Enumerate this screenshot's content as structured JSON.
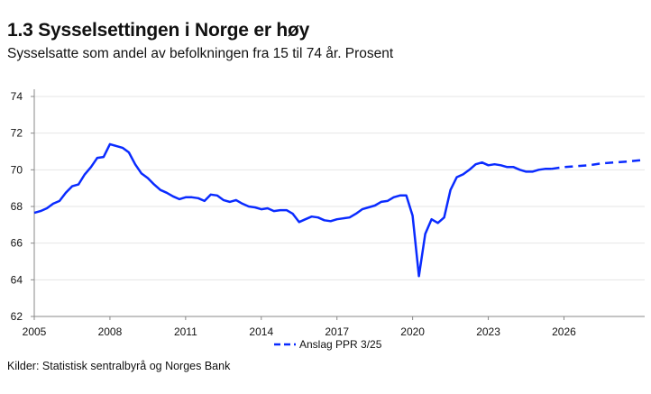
{
  "title": "1.3 Sysselsettingen i Norge er høy",
  "subtitle": "Sysselsatte som andel av befolkningen fra 15 til 74 år. Prosent",
  "source": "Kilder: Statistisk sentralbyrå og Norges Bank",
  "colors": {
    "line": "#0a2bff",
    "grid": "#e6e6e6"
  },
  "chart_data": {
    "type": "line",
    "xlim": [
      2005,
      2029.2
    ],
    "ylim": [
      62,
      74
    ],
    "yticks": [
      62,
      64,
      66,
      68,
      70,
      72,
      74
    ],
    "xticks": [
      2005,
      2008,
      2011,
      2014,
      2017,
      2020,
      2023,
      2026
    ],
    "grid": true,
    "legend": "bottom-center",
    "series": [
      {
        "values_x_start": 2005,
        "step": 0.25,
        "style": "solid",
        "y": [
          67.65,
          67.75,
          67.9,
          68.15,
          68.3,
          68.75,
          69.1,
          69.2,
          69.75,
          70.15,
          70.65,
          70.7,
          71.4,
          71.3,
          71.2,
          70.95,
          70.3,
          69.8,
          69.55,
          69.2,
          68.9,
          68.75,
          68.55,
          68.4,
          68.5,
          68.5,
          68.45,
          68.3,
          68.65,
          68.6,
          68.35,
          68.25,
          68.35,
          68.15,
          68.0,
          67.95,
          67.85,
          67.9,
          67.75,
          67.8,
          67.8,
          67.6,
          67.15,
          67.3,
          67.45,
          67.4,
          67.25,
          67.2,
          67.3,
          67.35,
          67.4,
          67.6,
          67.85,
          67.95,
          68.05,
          68.25,
          68.3,
          68.5,
          68.6,
          68.6,
          67.5,
          64.2,
          66.5,
          67.3,
          67.1,
          67.4,
          68.9,
          69.6,
          69.75,
          70.0,
          70.3,
          70.4,
          70.25,
          70.3,
          70.25,
          70.15,
          70.15,
          70.0,
          69.9,
          69.9,
          70.0,
          70.05,
          70.05
        ]
      },
      {
        "name": "Anslag PPR 3/25",
        "style": "dashed",
        "x": [
          2025.5,
          2026,
          2026.5,
          2027,
          2027.5,
          2028,
          2028.5,
          2029.2
        ],
        "y": [
          70.05,
          70.15,
          70.2,
          70.25,
          70.35,
          70.4,
          70.45,
          70.55
        ]
      }
    ]
  }
}
